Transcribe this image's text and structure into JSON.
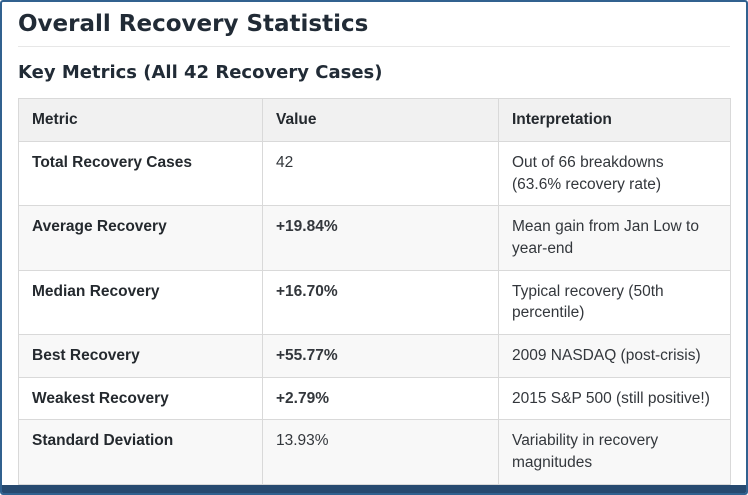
{
  "page": {
    "title": "Overall Recovery Statistics",
    "subtitle": "Key Metrics (All 42 Recovery Cases)"
  },
  "table": {
    "columns": [
      "Metric",
      "Value",
      "Interpretation"
    ],
    "rows": [
      {
        "metric": "Total Recovery Cases",
        "value": "42",
        "value_bold": false,
        "interpretation": "Out of 66 breakdowns (63.6% recovery rate)"
      },
      {
        "metric": "Average Recovery",
        "value": "+19.84%",
        "value_bold": true,
        "interpretation": "Mean gain from Jan Low to year-end"
      },
      {
        "metric": "Median Recovery",
        "value": "+16.70%",
        "value_bold": true,
        "interpretation": "Typical recovery (50th percentile)"
      },
      {
        "metric": "Best Recovery",
        "value": "+55.77%",
        "value_bold": true,
        "interpretation": "2009 NASDAQ (post-crisis)"
      },
      {
        "metric": "Weakest Recovery",
        "value": "+2.79%",
        "value_bold": true,
        "interpretation": "2015 S&P 500 (still positive!)"
      },
      {
        "metric": "Standard Deviation",
        "value": "13.93%",
        "value_bold": false,
        "interpretation": "Variability in recovery magnitudes"
      }
    ]
  },
  "colors": {
    "border_accent": "#31618f",
    "heading": "#212b36",
    "table_grid": "#d9d9d9",
    "header_bg": "#f1f1f1",
    "row_alt_bg": "#f8f8f8",
    "bottom_bar": "#274a70"
  }
}
